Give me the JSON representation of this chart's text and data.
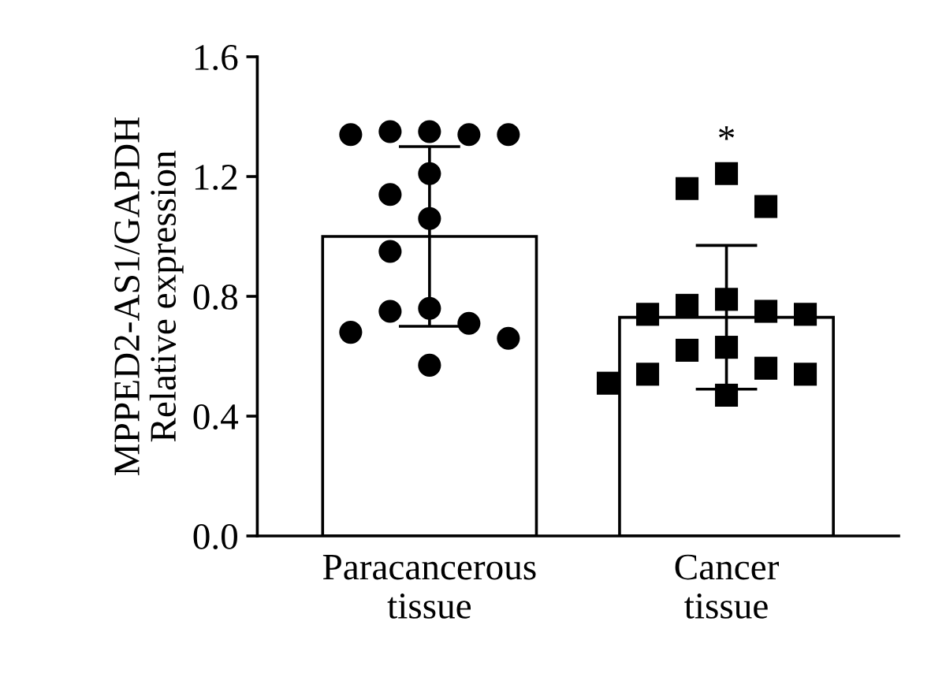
{
  "chart_data": {
    "type": "bar",
    "ylabel": "MPPED2-AS1/GAPDH\nRelative expression",
    "categories": [
      "Paracancerous\ntissue",
      "Cancer\ntissue"
    ],
    "ylim": [
      0,
      1.6
    ],
    "yticks": [
      {
        "value": 0,
        "label": "0.0"
      },
      0.4,
      0.8,
      1.2,
      1.6
    ],
    "grid": false,
    "legend": false,
    "series": [
      {
        "color": "#ffffff",
        "values": [
          1.0,
          0.73
        ],
        "errors": [
          0.3,
          0.24
        ]
      },
      {
        "type": "scatter",
        "marker": "circle",
        "color": "#000000",
        "x": [
          "Paracancerous\ntissue",
          "Paracancerous\ntissue",
          "Paracancerous\ntissue",
          "Paracancerous\ntissue",
          "Paracancerous\ntissue",
          "Paracancerous\ntissue",
          "Paracancerous\ntissue",
          "Paracancerous\ntissue",
          "Paracancerous\ntissue",
          "Paracancerous\ntissue",
          "Paracancerous\ntissue",
          "Paracancerous\ntissue",
          "Paracancerous\ntissue",
          "Paracancerous\ntissue",
          "Paracancerous\ntissue"
        ],
        "values": [
          1.35,
          1.35,
          1.34,
          1.34,
          1.34,
          1.21,
          1.14,
          1.06,
          0.95,
          0.76,
          0.75,
          0.71,
          0.68,
          0.66,
          0.57
        ]
      },
      {
        "type": "scatter",
        "marker": "square",
        "color": "#000000",
        "x": [
          "Cancer\ntissue",
          "Cancer\ntissue",
          "Cancer\ntissue",
          "Cancer\ntissue",
          "Cancer\ntissue",
          "Cancer\ntissue",
          "Cancer\ntissue",
          "Cancer\ntissue",
          "Cancer\ntissue",
          "Cancer\ntissue",
          "Cancer\ntissue",
          "Cancer\ntissue",
          "Cancer\ntissue",
          "Cancer\ntissue",
          "Cancer\ntissue"
        ],
        "values": [
          1.21,
          1.16,
          1.1,
          0.79,
          0.77,
          0.75,
          0.74,
          0.74,
          0.63,
          0.62,
          0.56,
          0.54,
          0.54,
          0.51,
          0.47
        ]
      }
    ],
    "annotations": [
      {
        "text": "*",
        "x": "Cancer\ntissue",
        "y": 1.26
      }
    ]
  }
}
